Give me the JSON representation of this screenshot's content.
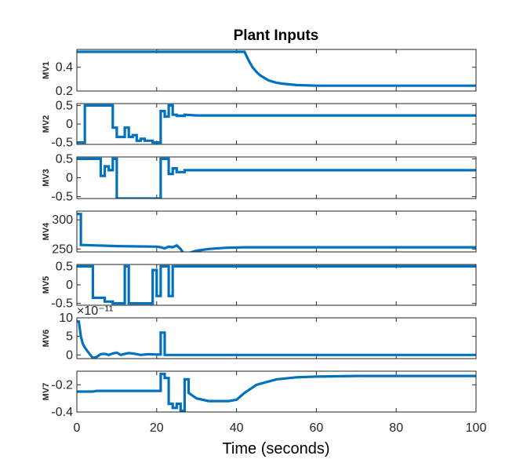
{
  "figure": {
    "title": "Plant Inputs",
    "xlabel": "Time (seconds)"
  },
  "colors": {
    "series": "#0072BD",
    "axes": "#262626"
  },
  "chart_data": [
    {
      "type": "line",
      "ylabel": "MV1",
      "xlim": [
        0,
        100
      ],
      "ylim": [
        0.2,
        0.55
      ],
      "yticks": [
        0.2,
        0.4
      ],
      "ytick_labels": [
        "0.2",
        "0.4"
      ],
      "exponent_label": "",
      "x": [
        0,
        42,
        43,
        44,
        45,
        46,
        47,
        48,
        50,
        52,
        55,
        60,
        70,
        80,
        90,
        100
      ],
      "y": [
        0.53,
        0.53,
        0.46,
        0.4,
        0.36,
        0.33,
        0.31,
        0.29,
        0.27,
        0.26,
        0.25,
        0.245,
        0.245,
        0.245,
        0.245,
        0.245
      ]
    },
    {
      "type": "line",
      "ylabel": "MV2",
      "xlim": [
        0,
        100
      ],
      "ylim": [
        -0.55,
        0.55
      ],
      "yticks": [
        -0.5,
        0,
        0.5
      ],
      "ytick_labels": [
        "-0.5",
        "0",
        "0.5"
      ],
      "exponent_label": "",
      "x": [
        0,
        2,
        2,
        9,
        9,
        10,
        10,
        12,
        12,
        13,
        13,
        14,
        14,
        15,
        15,
        16,
        16,
        17,
        17,
        19,
        19,
        21,
        21,
        22,
        22,
        23,
        23,
        24,
        24,
        25,
        25,
        27,
        27,
        30,
        100
      ],
      "y": [
        -0.5,
        -0.5,
        0.5,
        0.5,
        -0.1,
        -0.1,
        -0.35,
        -0.35,
        -0.1,
        -0.1,
        -0.35,
        -0.35,
        -0.3,
        -0.3,
        -0.45,
        -0.45,
        -0.4,
        -0.4,
        -0.45,
        -0.45,
        -0.5,
        -0.5,
        0.35,
        0.35,
        0.2,
        0.2,
        0.5,
        0.5,
        0.25,
        0.25,
        0.22,
        0.22,
        0.25,
        0.23,
        0.23
      ]
    },
    {
      "type": "line",
      "ylabel": "MV3",
      "xlim": [
        0,
        100
      ],
      "ylim": [
        -0.55,
        0.55
      ],
      "yticks": [
        -0.5,
        0,
        0.5
      ],
      "ytick_labels": [
        "-0.5",
        "0",
        "0.5"
      ],
      "exponent_label": "",
      "x": [
        0,
        6,
        6,
        7,
        7,
        8,
        8,
        9,
        9,
        10,
        10,
        21,
        21,
        23,
        23,
        24,
        24,
        25,
        25,
        27,
        27,
        30,
        100
      ],
      "y": [
        0.5,
        0.5,
        0.05,
        0.05,
        0.3,
        0.3,
        0.2,
        0.2,
        0.5,
        0.5,
        -0.55,
        -0.55,
        0.5,
        0.5,
        0.1,
        0.1,
        0.25,
        0.25,
        0.15,
        0.15,
        0.2,
        0.2,
        0.2
      ]
    },
    {
      "type": "line",
      "ylabel": "MV4",
      "xlim": [
        0,
        100
      ],
      "ylim": [
        245,
        315
      ],
      "yticks": [
        250,
        300
      ],
      "ytick_labels": [
        "250",
        "300"
      ],
      "exponent_label": "",
      "x": [
        0,
        1,
        1,
        5,
        10,
        20,
        21,
        22,
        23,
        24,
        25,
        26,
        27,
        28,
        30,
        33,
        37,
        42,
        50,
        60,
        80,
        100
      ],
      "y": [
        310,
        310,
        257,
        256,
        255,
        254,
        253,
        251,
        254,
        253,
        256,
        250,
        240,
        243,
        247,
        250,
        252,
        253,
        253,
        253,
        253,
        253
      ]
    },
    {
      "type": "line",
      "ylabel": "MV5",
      "xlim": [
        0,
        100
      ],
      "ylim": [
        -0.55,
        0.55
      ],
      "yticks": [
        -0.5,
        0,
        0.5
      ],
      "ytick_labels": [
        "-0.5",
        "0",
        "0.5"
      ],
      "exponent_label": "",
      "x": [
        0,
        4,
        4,
        7,
        7,
        9,
        9,
        12,
        12,
        13,
        13,
        19,
        19,
        20,
        20,
        21,
        21,
        23,
        23,
        24,
        24,
        100
      ],
      "y": [
        0.5,
        0.5,
        -0.35,
        -0.35,
        -0.45,
        -0.45,
        -0.5,
        -0.5,
        0.5,
        0.5,
        -0.5,
        -0.5,
        0.4,
        0.4,
        -0.3,
        -0.3,
        0.5,
        0.5,
        -0.3,
        -0.3,
        0.5,
        0.5
      ]
    },
    {
      "type": "line",
      "ylabel": "MV6",
      "xlim": [
        0,
        100
      ],
      "ylim": [
        -1,
        10
      ],
      "yticks": [
        0,
        5,
        10
      ],
      "ytick_labels": [
        "0",
        "5",
        "10"
      ],
      "exponent_label": "×10⁻¹¹",
      "x": [
        0,
        0.5,
        1,
        1.5,
        2,
        3,
        4,
        5,
        6,
        7,
        8,
        9,
        10,
        11,
        12,
        13,
        14,
        16,
        18,
        20,
        21,
        21,
        22,
        22,
        100
      ],
      "y": [
        9,
        9,
        5,
        3,
        2,
        0.5,
        -0.8,
        -0.5,
        0.2,
        0.3,
        0,
        0.4,
        0.6,
        0,
        0.3,
        0.5,
        0.4,
        0,
        0.2,
        0.1,
        0.1,
        6,
        6,
        0,
        0
      ]
    },
    {
      "type": "line",
      "ylabel": "MV7",
      "xlim": [
        0,
        100
      ],
      "ylim": [
        -0.4,
        -0.1
      ],
      "yticks": [
        -0.4,
        -0.2
      ],
      "ytick_labels": [
        "-0.4",
        "-0.2"
      ],
      "exponent_label": "",
      "x": [
        0,
        4,
        5,
        15,
        21,
        21,
        22,
        22,
        23,
        23,
        24,
        24,
        25,
        25,
        26,
        26,
        27,
        27,
        28,
        28,
        30,
        33,
        38,
        40,
        42,
        45,
        50,
        55,
        60,
        70,
        80,
        100
      ],
      "y": [
        -0.25,
        -0.25,
        -0.245,
        -0.245,
        -0.245,
        -0.12,
        -0.12,
        -0.15,
        -0.15,
        -0.34,
        -0.34,
        -0.37,
        -0.37,
        -0.34,
        -0.34,
        -0.39,
        -0.39,
        -0.16,
        -0.16,
        -0.26,
        -0.3,
        -0.32,
        -0.32,
        -0.31,
        -0.26,
        -0.2,
        -0.16,
        -0.145,
        -0.14,
        -0.135,
        -0.135,
        -0.135
      ]
    }
  ],
  "xaxis": {
    "ticks": [
      0,
      20,
      40,
      60,
      80,
      100
    ],
    "tick_labels": [
      "0",
      "20",
      "40",
      "60",
      "80",
      "100"
    ]
  }
}
